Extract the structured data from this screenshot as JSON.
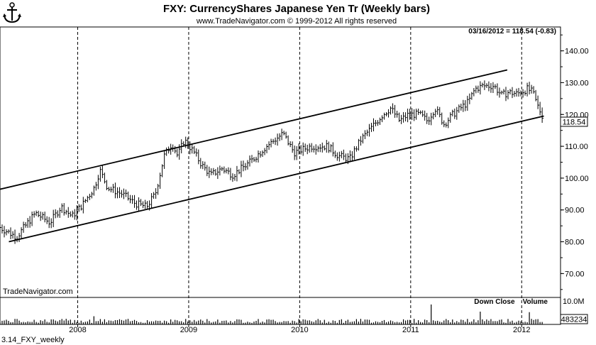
{
  "chart_data": {
    "type": "bar",
    "title": "FXY:  CurrencyShares Japanese Yen Tr  (Weekly bars)",
    "subtitle": "www.TradeNavigator.com © 1999-2012 All rights reserved",
    "last_quote": "03/16/2012 = 118.54 (-0.83)",
    "last_price_label": "118.54",
    "watermark": "TradeNavigator.com",
    "footer_label": "3.14_FXY_weekly",
    "volume_title": "Down Close    Volume",
    "volume_axis_top_label": "10.0M",
    "volume_last_label": "483234",
    "y_ticks": [
      {
        "value": 140,
        "label": "140.00"
      },
      {
        "value": 130,
        "label": "130.00"
      },
      {
        "value": 120,
        "label": "120.00"
      },
      {
        "value": 110,
        "label": "110.00"
      },
      {
        "value": 100,
        "label": "100.00"
      },
      {
        "value": 90,
        "label": "90.00"
      },
      {
        "value": 80,
        "label": "80.00"
      },
      {
        "value": 70,
        "label": "70.00"
      }
    ],
    "x_ticks": [
      {
        "t": 2008.0,
        "label": "2008"
      },
      {
        "t": 2009.0,
        "label": "2009"
      },
      {
        "t": 2010.0,
        "label": "2010"
      },
      {
        "t": 2011.0,
        "label": "2011"
      },
      {
        "t": 2012.0,
        "label": "2012"
      }
    ],
    "xlim": [
      2007.3,
      2012.35
    ],
    "ylim": [
      62.5,
      147.5
    ],
    "last_price": 118.54,
    "channel_lines": [
      {
        "from": [
          2007.3,
          96.5
        ],
        "to": [
          2011.87,
          134
        ]
      },
      {
        "from": [
          2007.38,
          80
        ],
        "to": [
          2012.2,
          119.5
        ]
      }
    ],
    "weekly_close_keypoints": [
      [
        2007.3,
        84.5
      ],
      [
        2007.45,
        81.5
      ],
      [
        2007.55,
        86
      ],
      [
        2007.62,
        89
      ],
      [
        2007.75,
        86
      ],
      [
        2007.85,
        91
      ],
      [
        2007.95,
        88
      ],
      [
        2008.05,
        92
      ],
      [
        2008.15,
        97
      ],
      [
        2008.2,
        102.5
      ],
      [
        2008.27,
        97
      ],
      [
        2008.4,
        95
      ],
      [
        2008.52,
        92
      ],
      [
        2008.62,
        91
      ],
      [
        2008.7,
        95
      ],
      [
        2008.78,
        107
      ],
      [
        2008.85,
        111
      ],
      [
        2008.9,
        107
      ],
      [
        2008.96,
        112
      ],
      [
        2009.05,
        108
      ],
      [
        2009.12,
        104
      ],
      [
        2009.2,
        101
      ],
      [
        2009.3,
        103
      ],
      [
        2009.4,
        101
      ],
      [
        2009.55,
        105
      ],
      [
        2009.7,
        110
      ],
      [
        2009.85,
        114
      ],
      [
        2009.95,
        108
      ],
      [
        2010.1,
        110
      ],
      [
        2010.25,
        110
      ],
      [
        2010.35,
        107
      ],
      [
        2010.45,
        106
      ],
      [
        2010.55,
        112
      ],
      [
        2010.65,
        116
      ],
      [
        2010.75,
        120
      ],
      [
        2010.82,
        122
      ],
      [
        2010.9,
        118
      ],
      [
        2010.98,
        120
      ],
      [
        2011.08,
        120
      ],
      [
        2011.15,
        118
      ],
      [
        2011.22,
        122
      ],
      [
        2011.3,
        117
      ],
      [
        2011.38,
        120
      ],
      [
        2011.45,
        122
      ],
      [
        2011.52,
        124
      ],
      [
        2011.58,
        128
      ],
      [
        2011.65,
        129
      ],
      [
        2011.75,
        129
      ],
      [
        2011.82,
        126
      ],
      [
        2011.88,
        127
      ],
      [
        2011.96,
        126.5
      ],
      [
        2012.05,
        128
      ],
      [
        2012.1,
        127
      ],
      [
        2012.14,
        123
      ],
      [
        2012.2,
        118.54
      ]
    ],
    "volume_spikes_millions": [
      [
        2008.15,
        3.2
      ],
      [
        2011.18,
        7.8
      ],
      [
        2011.63,
        5.0
      ],
      [
        2012.07,
        4.8
      ]
    ]
  }
}
